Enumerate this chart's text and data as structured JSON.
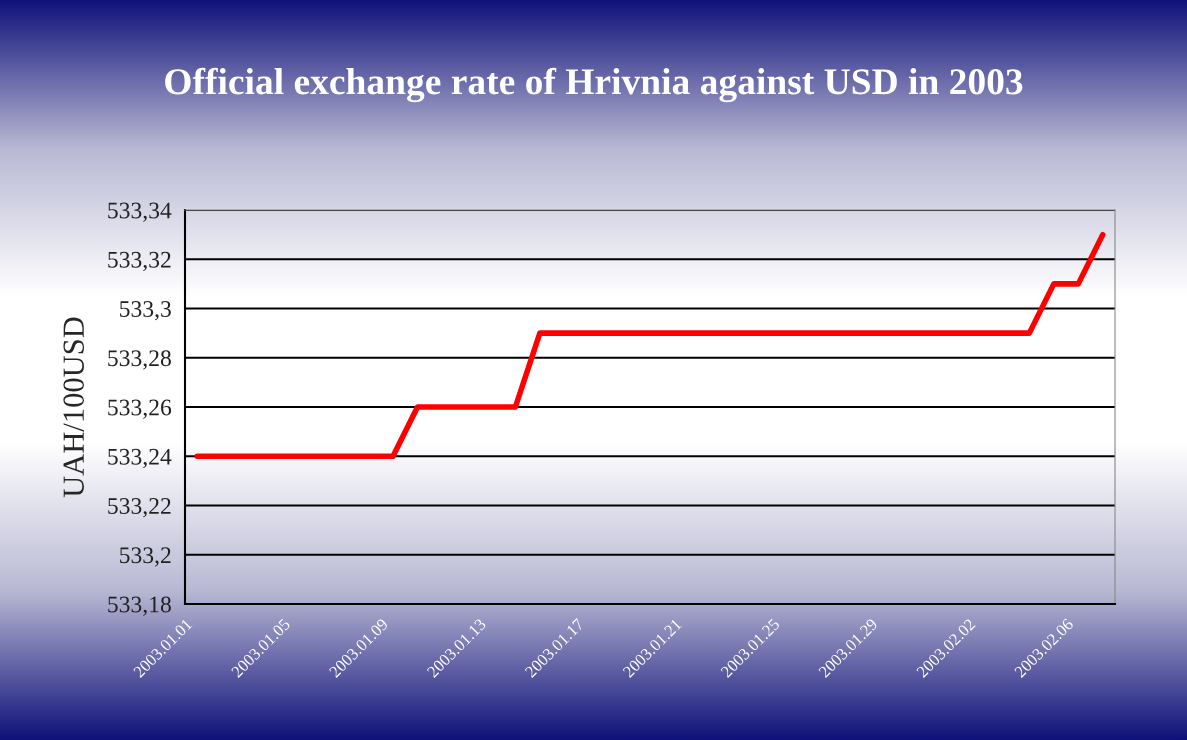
{
  "chart_data": {
    "type": "line",
    "title": "Official exchange rate of Hrivnia against USD in 2003",
    "ylabel": "UAH/100USD",
    "x": [
      "2003-01-01T12:00",
      "2003-01-09T12:00",
      "2003-01-10T12:00",
      "2003-01-14T12:00",
      "2003-01-15T12:00",
      "2003-02-04T12:00",
      "2003-02-05T12:00",
      "2003-02-06T12:00",
      "2003-02-07T12:00"
    ],
    "series": [
      {
        "color": "#ff0000",
        "values": [
          533.24,
          533.24,
          533.26,
          533.26,
          533.29,
          533.29,
          533.31,
          533.31,
          533.33
        ]
      }
    ],
    "xlim": [
      "2003-01-01",
      "2003-02-08"
    ],
    "xticks": [
      {
        "value": "2003-01-01",
        "label": "2003.01.01"
      },
      {
        "value": "2003-01-05",
        "label": "2003.01.05"
      },
      {
        "value": "2003-01-09",
        "label": "2003.01.09"
      },
      {
        "value": "2003-01-13",
        "label": "2003.01.13"
      },
      {
        "value": "2003-01-17",
        "label": "2003.01.17"
      },
      {
        "value": "2003-01-21",
        "label": "2003.01.21"
      },
      {
        "value": "2003-01-25",
        "label": "2003.01.25"
      },
      {
        "value": "2003-01-29",
        "label": "2003.01.29"
      },
      {
        "value": "2003-02-02",
        "label": "2003.02.02"
      },
      {
        "value": "2003-02-06",
        "label": "2003.02.06"
      }
    ],
    "ylim": [
      533.18,
      533.34
    ],
    "yticks": [
      {
        "value": 533.18,
        "label": "533,18"
      },
      {
        "value": 533.2,
        "label": "533,2"
      },
      {
        "value": 533.22,
        "label": "533,22"
      },
      {
        "value": 533.24,
        "label": "533,24"
      },
      {
        "value": 533.26,
        "label": "533,26"
      },
      {
        "value": 533.28,
        "label": "533,28"
      },
      {
        "value": 533.3,
        "label": "533,3"
      },
      {
        "value": 533.32,
        "label": "533,32"
      },
      {
        "value": 533.34,
        "label": "533,34"
      }
    ],
    "grid": "y",
    "marker": "none",
    "line_style": "solid",
    "legend": false
  }
}
